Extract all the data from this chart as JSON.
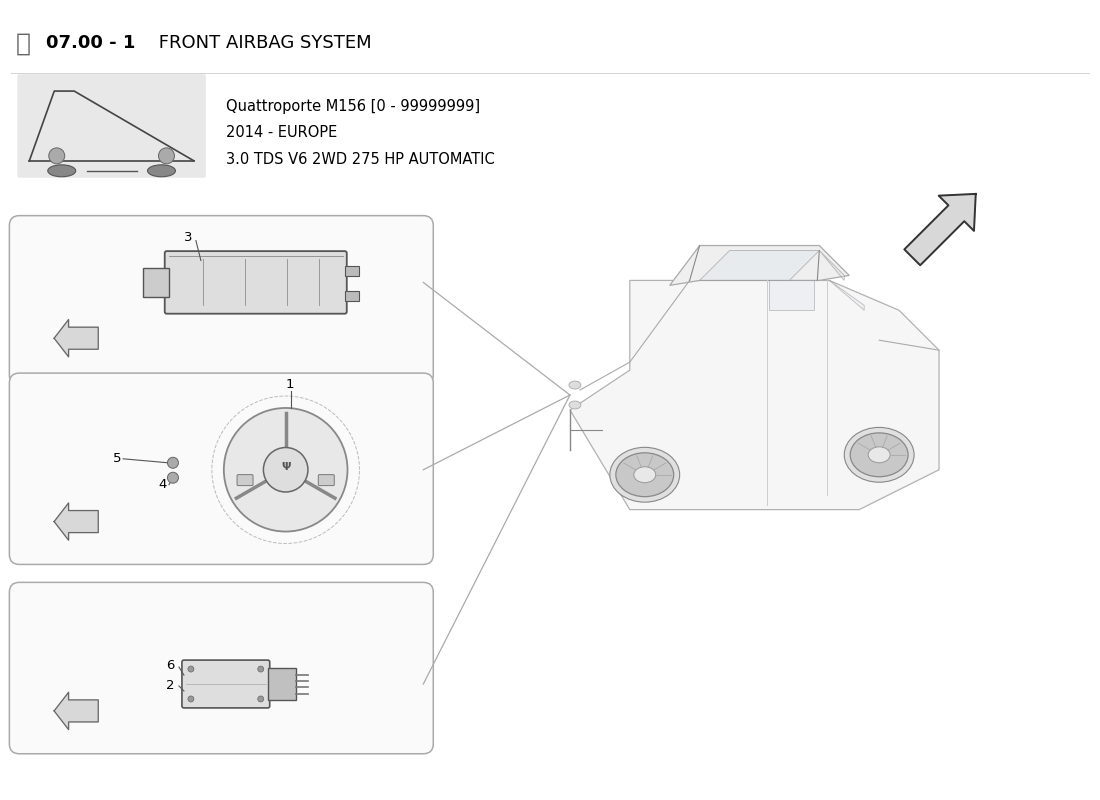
{
  "title_bold": "07.00 - 1",
  "title_normal": " FRONT AIRBAG SYSTEM",
  "subtitle_lines": [
    "Quattroporte M156 [0 - 99999999]",
    "2014 - EUROPE",
    "3.0 TDS V6 2WD 275 HP AUTOMATIC"
  ],
  "bg_color": "#FFFFFF",
  "border_color": "#AAAAAA",
  "text_color": "#000000",
  "box_edge_color": "#AAAAAA",
  "part_labels_box1": [
    "3"
  ],
  "part_labels_box2": [
    "1",
    "5",
    "4"
  ],
  "part_labels_box3": [
    "6",
    "2"
  ]
}
